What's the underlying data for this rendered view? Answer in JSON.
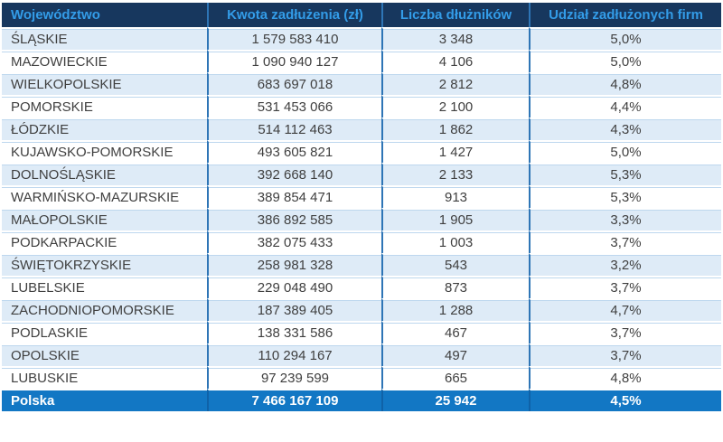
{
  "colors": {
    "header_bg": "#17375E",
    "header_text": "#339CE8",
    "stripe_bg": "#DEEBF7",
    "row_bg": "#FFFFFF",
    "grid_line": "#2E75B6",
    "thin_line": "#BDD7EE",
    "body_text": "#3F3F3F",
    "footer_bg": "#1277C4",
    "footer_line": "#0F62A8",
    "footer_text": "#FFFFFF"
  },
  "table": {
    "columns": [
      "Województwo",
      "Kwota zadłużenia (zł)",
      "Liczba dłużników",
      "Udział zadłużonych firm"
    ],
    "rows": [
      [
        "ŚLĄSKIE",
        "1 579 583 410",
        "3 348",
        "5,0%"
      ],
      [
        "MAZOWIECKIE",
        "1 090 940 127",
        "4 106",
        "5,0%"
      ],
      [
        "WIELKOPOLSKIE",
        "683 697 018",
        "2 812",
        "4,8%"
      ],
      [
        "POMORSKIE",
        "531 453 066",
        "2 100",
        "4,4%"
      ],
      [
        "ŁÓDZKIE",
        "514 112 463",
        "1 862",
        "4,3%"
      ],
      [
        "KUJAWSKO-POMORSKIE",
        "493 605 821",
        "1 427",
        "5,0%"
      ],
      [
        "DOLNOŚLĄSKIE",
        "392 668 140",
        "2 133",
        "5,3%"
      ],
      [
        "WARMIŃSKO-MAZURSKIE",
        "389 854 471",
        "913",
        "5,3%"
      ],
      [
        "MAŁOPOLSKIE",
        "386 892 585",
        "1 905",
        "3,3%"
      ],
      [
        "PODKARPACKIE",
        "382 075 433",
        "1 003",
        "3,7%"
      ],
      [
        "ŚWIĘTOKRZYSKIE",
        "258 981 328",
        "543",
        "3,2%"
      ],
      [
        "LUBELSKIE",
        "229 048 490",
        "873",
        "3,7%"
      ],
      [
        "ZACHODNIOPOMORSKIE",
        "187 389 405",
        "1 288",
        "4,7%"
      ],
      [
        "PODLASKIE",
        "138 331 586",
        "467",
        "3,7%"
      ],
      [
        "OPOLSKIE",
        "110 294 167",
        "497",
        "3,7%"
      ],
      [
        "LUBUSKIE",
        "97 239 599",
        "665",
        "4,8%"
      ]
    ],
    "footer": [
      "Polska",
      "7 466 167 109",
      "25 942",
      "4,5%"
    ]
  },
  "chart_data": {
    "type": "table",
    "columns": [
      "Województwo",
      "Kwota zadłużenia (zł)",
      "Liczba dłużników",
      "Udział zadłużonych firm"
    ],
    "rows": [
      {
        "wojewodztwo": "ŚLĄSKIE",
        "kwota_zadluzenia_zl": 1579583410,
        "liczba_dluznikow": 3348,
        "udzial_zadluzonych_firm_pct": 5.0
      },
      {
        "wojewodztwo": "MAZOWIECKIE",
        "kwota_zadluzenia_zl": 1090940127,
        "liczba_dluznikow": 4106,
        "udzial_zadluzonych_firm_pct": 5.0
      },
      {
        "wojewodztwo": "WIELKOPOLSKIE",
        "kwota_zadluzenia_zl": 683697018,
        "liczba_dluznikow": 2812,
        "udzial_zadluzonych_firm_pct": 4.8
      },
      {
        "wojewodztwo": "POMORSKIE",
        "kwota_zadluzenia_zl": 531453066,
        "liczba_dluznikow": 2100,
        "udzial_zadluzonych_firm_pct": 4.4
      },
      {
        "wojewodztwo": "ŁÓDZKIE",
        "kwota_zadluzenia_zl": 514112463,
        "liczba_dluznikow": 1862,
        "udzial_zadluzonych_firm_pct": 4.3
      },
      {
        "wojewodztwo": "KUJAWSKO-POMORSKIE",
        "kwota_zadluzenia_zl": 493605821,
        "liczba_dluznikow": 1427,
        "udzial_zadluzonych_firm_pct": 5.0
      },
      {
        "wojewodztwo": "DOLNOŚLĄSKIE",
        "kwota_zadluzenia_zl": 392668140,
        "liczba_dluznikow": 2133,
        "udzial_zadluzonych_firm_pct": 5.3
      },
      {
        "wojewodztwo": "WARMIŃSKO-MAZURSKIE",
        "kwota_zadluzenia_zl": 389854471,
        "liczba_dluznikow": 913,
        "udzial_zadluzonych_firm_pct": 5.3
      },
      {
        "wojewodztwo": "MAŁOPOLSKIE",
        "kwota_zadluzenia_zl": 386892585,
        "liczba_dluznikow": 1905,
        "udzial_zadluzonych_firm_pct": 3.3
      },
      {
        "wojewodztwo": "PODKARPACKIE",
        "kwota_zadluzenia_zl": 382075433,
        "liczba_dluznikow": 1003,
        "udzial_zadluzonych_firm_pct": 3.7
      },
      {
        "wojewodztwo": "ŚWIĘTOKRZYSKIE",
        "kwota_zadluzenia_zl": 258981328,
        "liczba_dluznikow": 543,
        "udzial_zadluzonych_firm_pct": 3.2
      },
      {
        "wojewodztwo": "LUBELSKIE",
        "kwota_zadluzenia_zl": 229048490,
        "liczba_dluznikow": 873,
        "udzial_zadluzonych_firm_pct": 3.7
      },
      {
        "wojewodztwo": "ZACHODNIOPOMORSKIE",
        "kwota_zadluzenia_zl": 187389405,
        "liczba_dluznikow": 1288,
        "udzial_zadluzonych_firm_pct": 4.7
      },
      {
        "wojewodztwo": "PODLASKIE",
        "kwota_zadluzenia_zl": 138331586,
        "liczba_dluznikow": 467,
        "udzial_zadluzonych_firm_pct": 3.7
      },
      {
        "wojewodztwo": "OPOLSKIE",
        "kwota_zadluzenia_zl": 110294167,
        "liczba_dluznikow": 497,
        "udzial_zadluzonych_firm_pct": 3.7
      },
      {
        "wojewodztwo": "LUBUSKIE",
        "kwota_zadluzenia_zl": 97239599,
        "liczba_dluznikow": 665,
        "udzial_zadluzonych_firm_pct": 4.8
      }
    ],
    "total": {
      "wojewodztwo": "Polska",
      "kwota_zadluzenia_zl": 7466167109,
      "liczba_dluznikow": 25942,
      "udzial_zadluzonych_firm_pct": 4.5
    }
  }
}
